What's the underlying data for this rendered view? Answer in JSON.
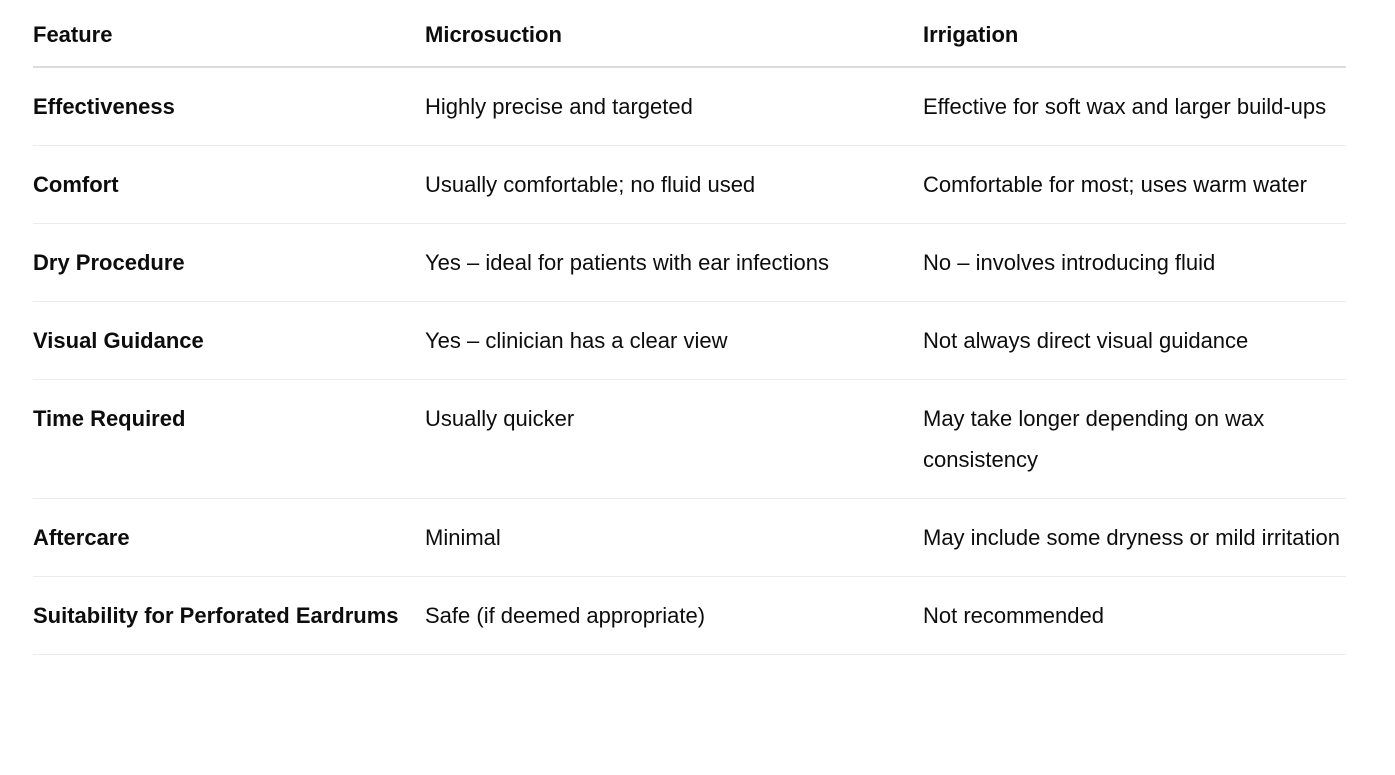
{
  "table": {
    "headers": [
      "Feature",
      "Microsuction",
      "Irrigation"
    ],
    "rows": [
      [
        "Effectiveness",
        "Highly precise and targeted",
        "Effective for soft wax and larger build-ups"
      ],
      [
        "Comfort",
        "Usually comfortable; no fluid used",
        "Comfortable for most; uses warm water"
      ],
      [
        "Dry Procedure",
        "Yes – ideal for patients with ear infections",
        "No – involves introducing fluid"
      ],
      [
        "Visual Guidance",
        "Yes – clinician has a clear view",
        "Not always direct visual guidance"
      ],
      [
        "Time Required",
        "Usually quicker",
        "May take longer depending on wax consistency"
      ],
      [
        "Aftercare",
        "Minimal",
        "May include some dryness or mild irritation"
      ],
      [
        "Suitability for Perforated Eardrums",
        "Safe (if deemed appropriate)",
        "Not recommended"
      ]
    ]
  }
}
